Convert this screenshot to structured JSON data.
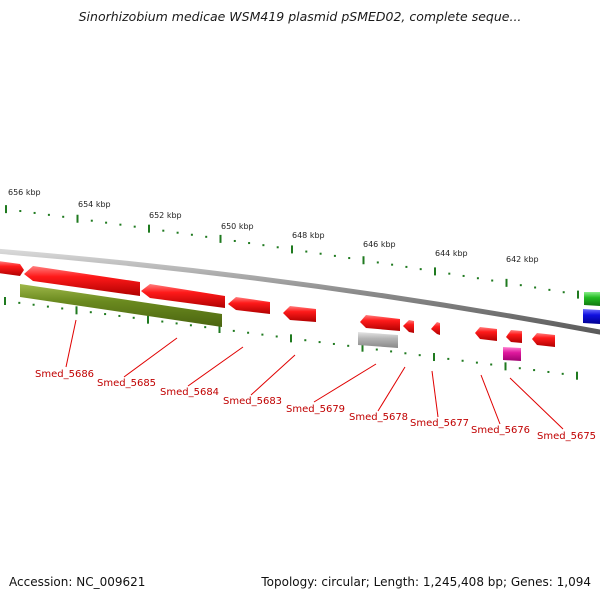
{
  "title": "Sinorhizobium medicae WSM419 plasmid pSMED02, complete seque...",
  "footer": {
    "accession": "Accession: NC_009621",
    "summary": "Topology: circular; Length: 1,245,408 bp; Genes: 1,094"
  },
  "colors": {
    "backbone": "#8c8c8c",
    "tick": "#1f7a1f",
    "gene_red": "#e81010",
    "gene_olive": "#6b8a1f",
    "gene_gray": "#a8a8a8",
    "gene_magenta": "#e0199e",
    "gene_green": "#22bb22",
    "gene_blue": "#1010e0",
    "label": "#c00000",
    "leader": "#e00000"
  },
  "ruler": {
    "labels": [
      "656 kbp",
      "654 kbp",
      "652 kbp",
      "650 kbp",
      "648 kbp",
      "646 kbp",
      "644 kbp",
      "642 kbp"
    ]
  },
  "genes": [
    {
      "id": "g1",
      "label": "Smed_5686",
      "color": "gene_red",
      "strand": "plus"
    },
    {
      "id": "g2",
      "label": "Smed_5685",
      "color": "gene_red",
      "strand": "minus"
    },
    {
      "id": "g3",
      "label": "Smed_5684",
      "color": "gene_red",
      "strand": "minus"
    },
    {
      "id": "g4",
      "label": "Smed_5683",
      "color": "gene_red",
      "strand": "minus"
    },
    {
      "id": "g5",
      "label": "Smed_5679",
      "color": "gene_red",
      "strand": "minus"
    },
    {
      "id": "g6",
      "label": "Smed_5678",
      "color": "gene_red",
      "strand": "minus"
    },
    {
      "id": "g7",
      "label": "Smed_5677",
      "color": "gene_red",
      "strand": "minus"
    },
    {
      "id": "g8",
      "label": "Smed_5676",
      "color": "gene_red",
      "strand": "minus"
    },
    {
      "id": "g9",
      "label": "Smed_5675",
      "color": "gene_red",
      "strand": "minus"
    },
    {
      "id": "g10",
      "label": "",
      "color": "gene_olive",
      "strand": "plus"
    },
    {
      "id": "g11",
      "label": "",
      "color": "gene_gray",
      "strand": "plus"
    },
    {
      "id": "g12",
      "label": "",
      "color": "gene_magenta",
      "strand": "plus"
    },
    {
      "id": "g13",
      "label": "",
      "color": "gene_green",
      "strand": "plus"
    },
    {
      "id": "g14",
      "label": "",
      "color": "gene_blue",
      "strand": "plus"
    },
    {
      "id": "g15",
      "label": "",
      "color": "gene_red",
      "strand": "minus"
    }
  ]
}
